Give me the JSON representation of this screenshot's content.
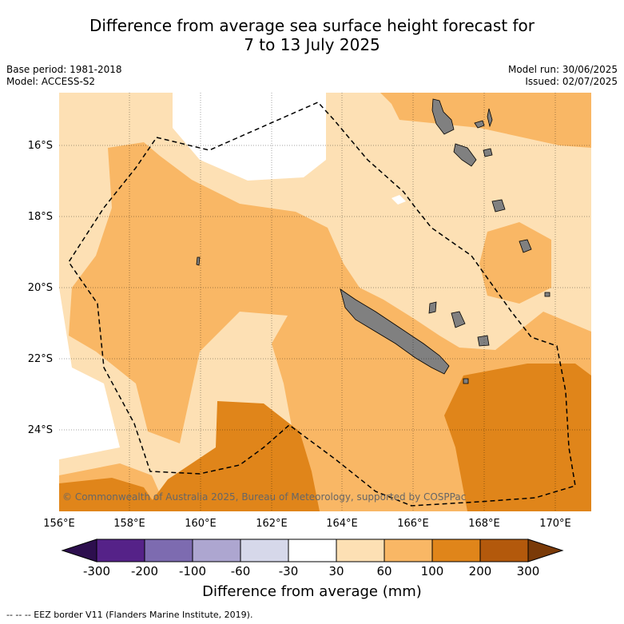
{
  "title_line1": "Difference from average sea surface height forecast for",
  "title_line2": "7 to 13 July 2025",
  "base_period": "Base period: 1981-2018",
  "model": "Model: ACCESS-S2",
  "model_run": "Model run: 30/06/2025",
  "issued": "Issued: 02/07/2025",
  "copyright": "© Commonwealth of Australia 2025, Bureau of Meteorology, supported by COSPPac",
  "lon_labels": [
    "156°E",
    "158°E",
    "160°E",
    "162°E",
    "164°E",
    "166°E",
    "168°E",
    "170°E"
  ],
  "lat_labels": [
    "16°S",
    "18°S",
    "20°S",
    "22°S",
    "24°S"
  ],
  "colorbar": {
    "title": "Difference from average (mm)",
    "ticks": [
      "-300",
      "-200",
      "-100",
      "-60",
      "-30",
      "30",
      "60",
      "100",
      "200",
      "300"
    ],
    "colors": [
      "#552288",
      "#7d6bb0",
      "#ada6d0",
      "#d6d8ea",
      "#ffffff",
      "#fde0b4",
      "#f9b765",
      "#e0851a",
      "#b3590c"
    ],
    "extend_low_color": "#2d0f4e",
    "extend_high_color": "#7a3a08"
  },
  "legend_footer": "--  --  -- EEZ border V11 (Flanders Marine Institute, 2019).",
  "colors": {
    "level_30_60": "#fde0b4",
    "level_60_100": "#f9b765",
    "level_100_200": "#e0851a",
    "land": "#808080"
  }
}
